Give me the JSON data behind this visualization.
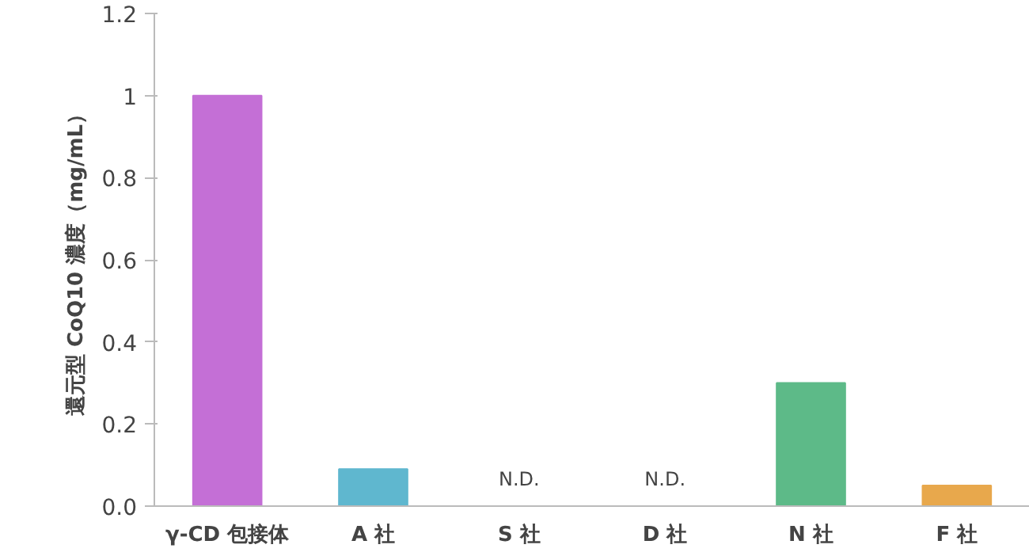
{
  "chart_data": {
    "type": "bar",
    "ylabel": "還元型 CoQ10 濃度（mg/mL）",
    "categories": [
      "γ-CD 包接体",
      "A 社",
      "S 社",
      "D 社",
      "N 社",
      "F 社"
    ],
    "values": [
      1.0,
      0.09,
      null,
      null,
      0.3,
      0.05
    ],
    "colors": [
      "#c46fd6",
      "#5fb7cf",
      "#5fb7cf",
      "#5fb7cf",
      "#5dba88",
      "#e8a84c"
    ],
    "value_labels": [
      null,
      null,
      "N.D.",
      "N.D.",
      null,
      null
    ],
    "ylim": [
      0,
      1.2
    ],
    "yticks": [
      {
        "value": 0,
        "label": "0.0"
      },
      0.2,
      0.4,
      0.6,
      0.8,
      1,
      1.2
    ],
    "grid": false
  }
}
